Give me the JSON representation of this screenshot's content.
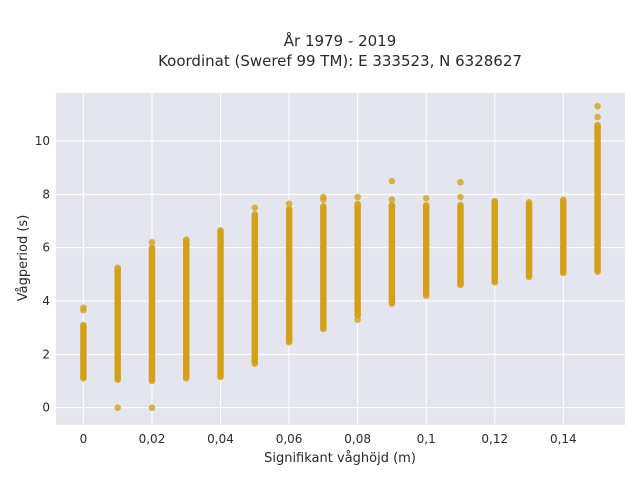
{
  "chart_data": {
    "type": "scatter",
    "title_lines": [
      "År 1979 - 2019",
      "Koordinat (Sweref 99 TM): E 333523, N 6328627"
    ],
    "xlabel": "Signifikant våghöjd (m)",
    "ylabel": "Vågperiod (s)",
    "xlim": [
      -0.008,
      0.158
    ],
    "ylim": [
      -0.65,
      11.8
    ],
    "x_ticks": [
      0,
      0.02,
      0.04,
      0.06,
      0.08,
      0.1,
      0.12,
      0.14
    ],
    "x_tick_labels": [
      "0",
      "0,02",
      "0,04",
      "0,06",
      "0,08",
      "0,1",
      "0,12",
      "0,14"
    ],
    "y_ticks": [
      0,
      2,
      4,
      6,
      8,
      10
    ],
    "y_tick_labels": [
      "0",
      "2",
      "4",
      "6",
      "8",
      "10"
    ],
    "grid": true,
    "background": "#e5e5ef",
    "point_color": "#d4a017",
    "columns": [
      {
        "x": 0,
        "ymin": 1.1,
        "ymax": 3.1,
        "outliers": [
          3.65,
          3.75
        ]
      },
      {
        "x": 0.01,
        "ymin": 1.05,
        "ymax": 5.25,
        "outliers": [
          0.0
        ]
      },
      {
        "x": 0.02,
        "ymin": 1.0,
        "ymax": 6.0,
        "outliers": [
          6.2,
          0.0
        ]
      },
      {
        "x": 0.03,
        "ymin": 1.1,
        "ymax": 6.3,
        "outliers": []
      },
      {
        "x": 0.04,
        "ymin": 1.15,
        "ymax": 6.65,
        "outliers": []
      },
      {
        "x": 0.05,
        "ymin": 1.65,
        "ymax": 7.25,
        "outliers": [
          7.5
        ]
      },
      {
        "x": 0.06,
        "ymin": 2.45,
        "ymax": 7.45,
        "outliers": [
          7.65
        ]
      },
      {
        "x": 0.07,
        "ymin": 2.95,
        "ymax": 7.55,
        "outliers": [
          7.8,
          7.9
        ]
      },
      {
        "x": 0.08,
        "ymin": 3.45,
        "ymax": 7.65,
        "outliers": [
          7.9,
          3.3
        ]
      },
      {
        "x": 0.09,
        "ymin": 3.9,
        "ymax": 7.6,
        "outliers": [
          7.8,
          8.5
        ]
      },
      {
        "x": 0.1,
        "ymin": 4.2,
        "ymax": 7.6,
        "outliers": [
          7.85
        ]
      },
      {
        "x": 0.11,
        "ymin": 4.6,
        "ymax": 7.6,
        "outliers": [
          7.9,
          8.45
        ]
      },
      {
        "x": 0.12,
        "ymin": 4.7,
        "ymax": 7.75,
        "outliers": []
      },
      {
        "x": 0.13,
        "ymin": 4.9,
        "ymax": 7.7,
        "outliers": []
      },
      {
        "x": 0.14,
        "ymin": 5.05,
        "ymax": 7.8,
        "outliers": []
      },
      {
        "x": 0.15,
        "ymin": 5.1,
        "ymax": 10.6,
        "outliers": [
          10.9,
          11.3
        ]
      }
    ]
  }
}
